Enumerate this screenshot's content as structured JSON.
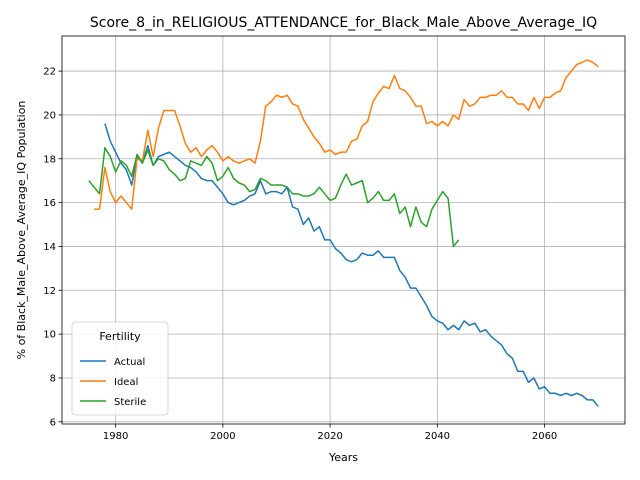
{
  "chart_data": {
    "type": "line",
    "title": "Score_8_in_RELIGIOUS_ATTENDANCE_for_Black_Male_Above_Average_IQ",
    "xlabel": "Years",
    "ylabel": "% of Black_Male_Above_Average_IQ Population",
    "xlim": [
      1970,
      2075
    ],
    "ylim": [
      5.9,
      23.6
    ],
    "xticks": [
      1980,
      2000,
      2020,
      2040,
      2060
    ],
    "yticks": [
      6,
      8,
      10,
      12,
      14,
      16,
      18,
      20,
      22
    ],
    "grid": true,
    "legend": {
      "title": "Fertility",
      "placement": "lower-left"
    },
    "series": [
      {
        "name": "Actual",
        "color": "#1f77b4",
        "x": [
          1978,
          1979,
          1980,
          1981,
          1982,
          1983,
          1984,
          1985,
          1986,
          1987,
          1988,
          1989,
          1990,
          1991,
          1992,
          1993,
          1994,
          1995,
          1996,
          1997,
          1998,
          1999,
          2000,
          2001,
          2002,
          2003,
          2004,
          2005,
          2006,
          2007,
          2008,
          2009,
          2010,
          2011,
          2012,
          2013,
          2014,
          2015,
          2016,
          2017,
          2018,
          2019,
          2020,
          2021,
          2022,
          2023,
          2024,
          2025,
          2026,
          2027,
          2028,
          2029,
          2030,
          2031,
          2032,
          2033,
          2034,
          2035,
          2036,
          2037,
          2038,
          2039,
          2040,
          2041,
          2042,
          2043,
          2044,
          2045,
          2046,
          2047,
          2048,
          2049,
          2050,
          2051,
          2052,
          2053,
          2054,
          2055,
          2056,
          2057,
          2058,
          2059,
          2060,
          2061,
          2062,
          2063,
          2064,
          2065,
          2066,
          2067,
          2068,
          2069,
          2070
        ],
        "values": [
          19.6,
          18.8,
          18.3,
          17.8,
          17.5,
          16.8,
          18.1,
          17.8,
          18.6,
          17.7,
          18.1,
          18.2,
          18.3,
          18.1,
          17.9,
          17.7,
          17.6,
          17.4,
          17.1,
          17.0,
          17.0,
          16.7,
          16.4,
          16.0,
          15.9,
          16.0,
          16.1,
          16.3,
          16.4,
          17.0,
          16.4,
          16.5,
          16.5,
          16.4,
          16.7,
          15.8,
          15.7,
          15.0,
          15.3,
          14.7,
          14.9,
          14.3,
          14.3,
          13.9,
          13.7,
          13.4,
          13.3,
          13.4,
          13.7,
          13.6,
          13.6,
          13.8,
          13.5,
          13.5,
          13.5,
          12.9,
          12.6,
          12.1,
          12.1,
          11.7,
          11.3,
          10.8,
          10.6,
          10.5,
          10.2,
          10.4,
          10.2,
          10.6,
          10.4,
          10.5,
          10.1,
          10.2,
          9.9,
          9.7,
          9.5,
          9.1,
          8.9,
          8.3,
          8.3,
          7.8,
          8.0,
          7.5,
          7.6,
          7.3,
          7.3,
          7.2,
          7.3,
          7.2,
          7.3,
          7.2,
          7.0,
          7.0,
          6.7
        ]
      },
      {
        "name": "Ideal",
        "color": "#ff7f0e",
        "x": [
          1976,
          1977,
          1978,
          1979,
          1980,
          1981,
          1982,
          1983,
          1984,
          1985,
          1986,
          1987,
          1988,
          1989,
          1990,
          1991,
          1992,
          1993,
          1994,
          1995,
          1996,
          1997,
          1998,
          1999,
          2000,
          2001,
          2002,
          2003,
          2004,
          2005,
          2006,
          2007,
          2008,
          2009,
          2010,
          2011,
          2012,
          2013,
          2014,
          2015,
          2016,
          2017,
          2018,
          2019,
          2020,
          2021,
          2022,
          2023,
          2024,
          2025,
          2026,
          2027,
          2028,
          2029,
          2030,
          2031,
          2032,
          2033,
          2034,
          2035,
          2036,
          2037,
          2038,
          2039,
          2040,
          2041,
          2042,
          2043,
          2044,
          2045,
          2046,
          2047,
          2048,
          2049,
          2050,
          2051,
          2052,
          2053,
          2054,
          2055,
          2056,
          2057,
          2058,
          2059,
          2060,
          2061,
          2062,
          2063,
          2064,
          2065,
          2066,
          2067,
          2068,
          2069,
          2070
        ],
        "values": [
          15.7,
          15.7,
          17.6,
          16.5,
          16.0,
          16.3,
          16.0,
          15.7,
          18.0,
          17.9,
          19.3,
          18.1,
          19.4,
          20.2,
          20.2,
          20.2,
          19.5,
          18.7,
          18.3,
          18.5,
          18.1,
          18.4,
          18.6,
          18.3,
          17.9,
          18.1,
          17.9,
          17.8,
          17.9,
          18.0,
          17.8,
          18.8,
          20.4,
          20.6,
          20.9,
          20.8,
          20.9,
          20.5,
          20.4,
          19.8,
          19.4,
          19.0,
          18.7,
          18.3,
          18.4,
          18.2,
          18.3,
          18.3,
          18.8,
          18.9,
          19.5,
          19.7,
          20.6,
          21.0,
          21.3,
          21.2,
          21.8,
          21.2,
          21.1,
          20.8,
          20.4,
          20.4,
          19.6,
          19.7,
          19.5,
          19.7,
          19.5,
          20.0,
          19.8,
          20.7,
          20.4,
          20.5,
          20.8,
          20.8,
          20.9,
          20.9,
          21.1,
          20.8,
          20.8,
          20.5,
          20.5,
          20.2,
          20.8,
          20.3,
          20.8,
          20.8,
          21.0,
          21.1,
          21.7,
          22.0,
          22.3,
          22.4,
          22.5,
          22.4,
          22.2
        ]
      },
      {
        "name": "Sterile",
        "color": "#2ca02c",
        "x": [
          1975,
          1976,
          1977,
          1978,
          1979,
          1980,
          1981,
          1982,
          1983,
          1984,
          1985,
          1986,
          1987,
          1988,
          1989,
          1990,
          1991,
          1992,
          1993,
          1994,
          1995,
          1996,
          1997,
          1998,
          1999,
          2000,
          2001,
          2002,
          2003,
          2004,
          2005,
          2006,
          2007,
          2008,
          2009,
          2010,
          2011,
          2012,
          2013,
          2014,
          2015,
          2016,
          2017,
          2018,
          2019,
          2020,
          2021,
          2022,
          2023,
          2024,
          2025,
          2026,
          2027,
          2028,
          2029,
          2030,
          2031,
          2032,
          2033,
          2034,
          2035,
          2036,
          2037,
          2038,
          2039,
          2040,
          2041,
          2042,
          2043,
          2044
        ],
        "values": [
          17.0,
          16.7,
          16.4,
          18.5,
          18.1,
          17.4,
          17.9,
          17.7,
          17.2,
          18.2,
          17.8,
          18.4,
          17.7,
          18.0,
          17.9,
          17.5,
          17.3,
          17.0,
          17.1,
          17.9,
          17.8,
          17.7,
          18.1,
          17.8,
          17.0,
          17.2,
          17.6,
          17.1,
          16.9,
          16.8,
          16.5,
          16.6,
          17.1,
          17.0,
          16.8,
          16.8,
          16.8,
          16.7,
          16.4,
          16.4,
          16.3,
          16.3,
          16.4,
          16.7,
          16.4,
          16.1,
          16.2,
          16.8,
          17.3,
          16.8,
          16.9,
          17.0,
          16.0,
          16.2,
          16.5,
          16.1,
          16.1,
          16.4,
          15.5,
          15.8,
          14.9,
          15.8,
          15.1,
          14.9,
          15.7,
          16.1,
          16.5,
          16.2,
          14.0,
          14.3
        ]
      }
    ]
  }
}
